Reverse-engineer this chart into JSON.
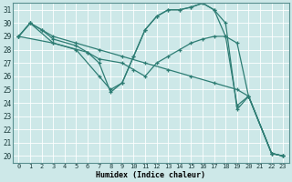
{
  "xlabel": "Humidex (Indice chaleur)",
  "xlim": [
    -0.5,
    23.5
  ],
  "ylim": [
    19.5,
    31.5
  ],
  "yticks": [
    20,
    21,
    22,
    23,
    24,
    25,
    26,
    27,
    28,
    29,
    30,
    31
  ],
  "xticks": [
    0,
    1,
    2,
    3,
    4,
    5,
    6,
    7,
    8,
    9,
    10,
    11,
    12,
    13,
    14,
    15,
    16,
    17,
    18,
    19,
    20,
    21,
    22,
    23
  ],
  "bg_color": "#cde8e8",
  "grid_color": "#b0d0d0",
  "line_color": "#2e7d74",
  "lines": [
    [
      [
        0,
        29
      ],
      [
        1,
        30
      ],
      [
        2,
        29.5
      ],
      [
        3,
        29
      ],
      [
        5,
        28.5
      ],
      [
        7,
        28
      ],
      [
        9,
        27.5
      ],
      [
        11,
        27
      ],
      [
        13,
        26.5
      ],
      [
        15,
        26
      ],
      [
        17,
        25.5
      ],
      [
        19,
        25
      ],
      [
        20,
        24.5
      ],
      [
        22,
        20.2
      ],
      [
        23,
        20
      ]
    ],
    [
      [
        0,
        29
      ],
      [
        1,
        30
      ],
      [
        2,
        29.5
      ],
      [
        3,
        28.8
      ],
      [
        5,
        28.3
      ],
      [
        6,
        27.8
      ],
      [
        7,
        27.3
      ],
      [
        9,
        27
      ],
      [
        10,
        26.5
      ],
      [
        11,
        26
      ],
      [
        12,
        27
      ],
      [
        13,
        27.5
      ],
      [
        14,
        28
      ],
      [
        15,
        28.5
      ],
      [
        16,
        28.8
      ],
      [
        17,
        29
      ],
      [
        18,
        29
      ],
      [
        19,
        28.5
      ],
      [
        20,
        24.5
      ],
      [
        22,
        20.2
      ],
      [
        23,
        20
      ]
    ],
    [
      [
        0,
        29
      ],
      [
        1,
        30
      ],
      [
        3,
        28.5
      ],
      [
        5,
        28
      ],
      [
        7,
        26
      ],
      [
        8,
        25
      ],
      [
        9,
        25.5
      ],
      [
        10,
        27.5
      ],
      [
        11,
        29.5
      ],
      [
        12,
        30.5
      ],
      [
        13,
        31
      ],
      [
        14,
        31
      ],
      [
        15,
        31.2
      ],
      [
        16,
        31.5
      ],
      [
        17,
        31
      ],
      [
        18,
        29
      ],
      [
        19,
        23.8
      ],
      [
        20,
        24.5
      ],
      [
        22,
        20.2
      ],
      [
        23,
        20
      ]
    ],
    [
      [
        0,
        29
      ],
      [
        3,
        28.5
      ],
      [
        6,
        27.8
      ],
      [
        7,
        27
      ],
      [
        8,
        24.8
      ],
      [
        9,
        25.5
      ],
      [
        10,
        27.5
      ],
      [
        11,
        29.5
      ],
      [
        12,
        30.5
      ],
      [
        13,
        31
      ],
      [
        14,
        31
      ],
      [
        15,
        31.2
      ],
      [
        16,
        31.5
      ],
      [
        17,
        31
      ],
      [
        18,
        30
      ],
      [
        19,
        23.5
      ],
      [
        20,
        24.5
      ],
      [
        22,
        20.2
      ],
      [
        23,
        20
      ]
    ]
  ]
}
